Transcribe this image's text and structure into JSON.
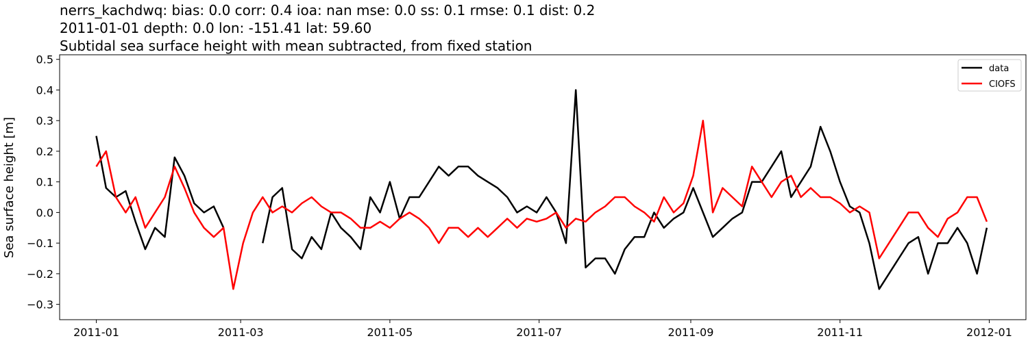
{
  "chart_data": {
    "type": "line",
    "title_lines": [
      "nerrs_kachdwq: bias: 0.0  corr: 0.4  ioa: nan  mse: 0.0  ss: 0.1  rmse: 0.1  dist: 0.2",
      "2011-01-01 depth: 0.0 lon: -151.41 lat: 59.60",
      "Subtidal sea surface height with mean subtracted, from fixed station"
    ],
    "xlabel": "",
    "ylabel": "Sea surface height [m]",
    "xlim_days": [
      -15,
      380
    ],
    "ylim": [
      -0.35,
      0.515
    ],
    "x_ticks": [
      {
        "label": "2011-01",
        "day": 0
      },
      {
        "label": "2011-03",
        "day": 59
      },
      {
        "label": "2011-05",
        "day": 120
      },
      {
        "label": "2011-07",
        "day": 181
      },
      {
        "label": "2011-09",
        "day": 243
      },
      {
        "label": "2011-11",
        "day": 304
      },
      {
        "label": "2012-01",
        "day": 365
      }
    ],
    "y_ticks": [
      0.5,
      0.4,
      0.3,
      0.2,
      0.1,
      0.0,
      -0.1,
      -0.2,
      -0.3
    ],
    "y_tick_labels": [
      "0.5",
      "0.4",
      "0.3",
      "0.2",
      "0.1",
      "0.0",
      "−0.1",
      "−0.2",
      "−0.3"
    ],
    "x_step_days": 4,
    "legend": {
      "position": "top-right",
      "entries": [
        "data",
        "CIOFS"
      ]
    },
    "series": [
      {
        "name": "data",
        "color": "#000000",
        "values": [
          0.25,
          0.08,
          0.05,
          0.07,
          -0.03,
          -0.12,
          -0.05,
          -0.08,
          0.18,
          0.12,
          0.03,
          0.0,
          0.02,
          -0.05,
          null,
          null,
          null,
          -0.1,
          0.05,
          0.08,
          -0.12,
          -0.15,
          -0.08,
          -0.12,
          0.0,
          -0.05,
          -0.08,
          -0.12,
          0.05,
          0.0,
          0.1,
          -0.02,
          0.05,
          0.05,
          0.1,
          0.15,
          0.12,
          0.15,
          0.15,
          0.12,
          0.1,
          0.08,
          0.05,
          0.0,
          0.02,
          0.0,
          0.05,
          0.0,
          -0.1,
          0.4,
          -0.18,
          -0.15,
          -0.15,
          -0.2,
          -0.12,
          -0.08,
          -0.08,
          0.0,
          -0.05,
          -0.02,
          0.0,
          0.08,
          0.0,
          -0.08,
          -0.05,
          -0.02,
          0.0,
          0.1,
          0.1,
          0.15,
          0.2,
          0.05,
          0.1,
          0.15,
          0.28,
          0.2,
          0.1,
          0.02,
          0.0,
          -0.1,
          -0.25,
          -0.2,
          -0.15,
          -0.1,
          -0.08,
          -0.2,
          -0.1,
          -0.1,
          -0.05,
          -0.1,
          -0.2,
          -0.05
        ]
      },
      {
        "name": "CIOFS",
        "color": "#ff0000",
        "values": [
          0.15,
          0.2,
          0.05,
          0.0,
          0.05,
          -0.05,
          0.0,
          0.05,
          0.15,
          0.08,
          0.0,
          -0.05,
          -0.08,
          -0.05,
          -0.25,
          -0.1,
          0.0,
          0.05,
          0.0,
          0.02,
          0.0,
          0.03,
          0.05,
          0.02,
          0.0,
          0.0,
          -0.02,
          -0.05,
          -0.05,
          -0.03,
          -0.05,
          -0.02,
          0.0,
          -0.02,
          -0.05,
          -0.1,
          -0.05,
          -0.05,
          -0.08,
          -0.05,
          -0.08,
          -0.05,
          -0.02,
          -0.05,
          -0.02,
          -0.03,
          -0.02,
          0.0,
          -0.05,
          -0.02,
          -0.03,
          0.0,
          0.02,
          0.05,
          0.05,
          0.02,
          0.0,
          -0.03,
          0.05,
          0.0,
          0.03,
          0.12,
          0.3,
          0.0,
          0.08,
          0.05,
          0.02,
          0.15,
          0.1,
          0.05,
          0.1,
          0.12,
          0.05,
          0.08,
          0.05,
          0.05,
          0.03,
          0.0,
          0.02,
          0.0,
          -0.15,
          -0.1,
          -0.05,
          0.0,
          0.0,
          -0.05,
          -0.08,
          -0.02,
          0.0,
          0.05,
          0.05,
          -0.03
        ]
      }
    ]
  }
}
